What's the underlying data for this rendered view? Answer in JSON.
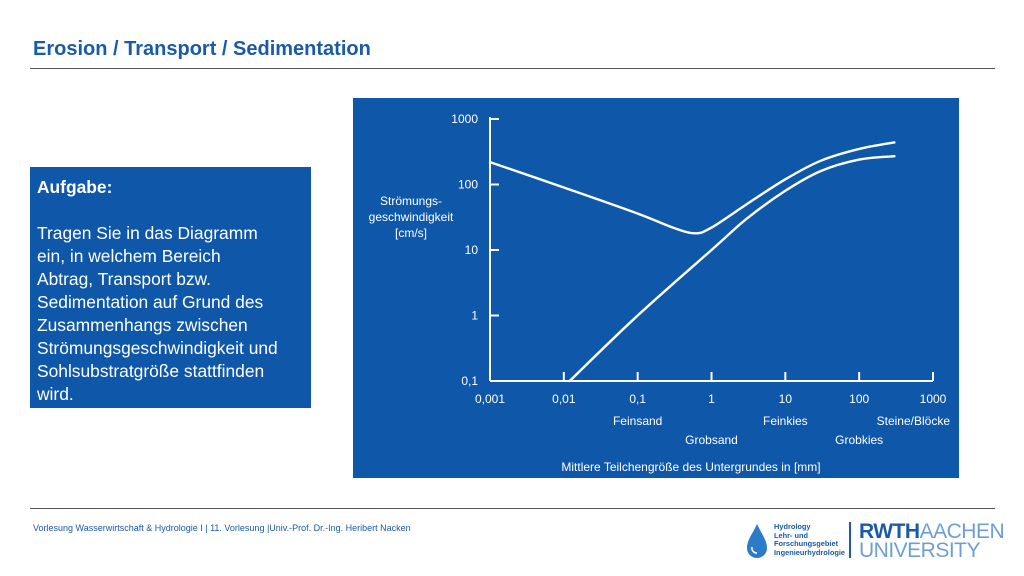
{
  "slide": {
    "title": "Erosion / Transport / Sedimentation"
  },
  "task": {
    "heading": "Aufgabe:",
    "lines": [
      "Tragen Sie in das Diagramm",
      "ein, in welchem Bereich",
      "Abtrag, Transport bzw.",
      "Sedimentation auf Grund des",
      "Zusammenhangs zwischen",
      "Strömungsgeschwindigkeit und",
      "Sohlsubstratgröße stattfinden",
      "wird."
    ]
  },
  "chart_data": {
    "type": "line",
    "x_scale": "log",
    "y_scale": "log",
    "xlim": [
      0.001,
      1000
    ],
    "ylim": [
      0.1,
      1000
    ],
    "ylabel_lines": [
      "Strömungs-",
      "geschwindigkeit",
      "[cm/s]"
    ],
    "xlabel": "Mittlere Teilchengröße des Untergrundes in [mm]",
    "x_ticks": [
      "0,001",
      "0,01",
      "0,1",
      "1",
      "10",
      "100",
      "1000"
    ],
    "x_tick_values": [
      0.001,
      0.01,
      0.1,
      1,
      10,
      100,
      1000
    ],
    "y_ticks": [
      "0,1",
      "1",
      "10",
      "100",
      "1000"
    ],
    "y_tick_values": [
      0.1,
      1,
      10,
      100,
      1000
    ],
    "categories_row1": [
      {
        "label": "Feinsand",
        "x": 0.1
      },
      {
        "label": "Feinkies",
        "x": 10
      },
      {
        "label": "Steine/Blöcke",
        "x": 1000
      }
    ],
    "categories_row2": [
      {
        "label": "Grobsand",
        "x": 1
      },
      {
        "label": "Grobkies",
        "x": 100
      }
    ],
    "series": [
      {
        "points": [
          [
            0.001,
            220
          ],
          [
            0.01,
            90
          ],
          [
            0.1,
            36
          ],
          [
            0.3,
            22
          ],
          [
            0.6,
            18
          ],
          [
            1,
            22
          ],
          [
            3,
            50
          ],
          [
            10,
            120
          ],
          [
            30,
            230
          ],
          [
            100,
            350
          ],
          [
            300,
            440
          ]
        ]
      },
      {
        "points": [
          [
            0.012,
            0.1
          ],
          [
            0.1,
            1
          ],
          [
            1,
            10
          ],
          [
            3,
            30
          ],
          [
            10,
            80
          ],
          [
            30,
            160
          ],
          [
            100,
            240
          ],
          [
            300,
            270
          ]
        ]
      }
    ],
    "colors": {
      "background": "#0f57a8",
      "foreground": "#ffffff"
    }
  },
  "footer": {
    "text": "Vorlesung Wasserwirtschaft & Hydrologie I | 11. Vorlesung |Univ.-Prof. Dr.-Ing. Heribert Nacken"
  },
  "logos": {
    "hydro_lines": [
      "Hydrology",
      "Lehr- und",
      "Forschungsgebiet",
      "Ingenieurhydrologie"
    ],
    "rwth_bold": "RWTH",
    "rwth_light": "AACHEN",
    "rwth_line2": "UNIVERSITY"
  }
}
